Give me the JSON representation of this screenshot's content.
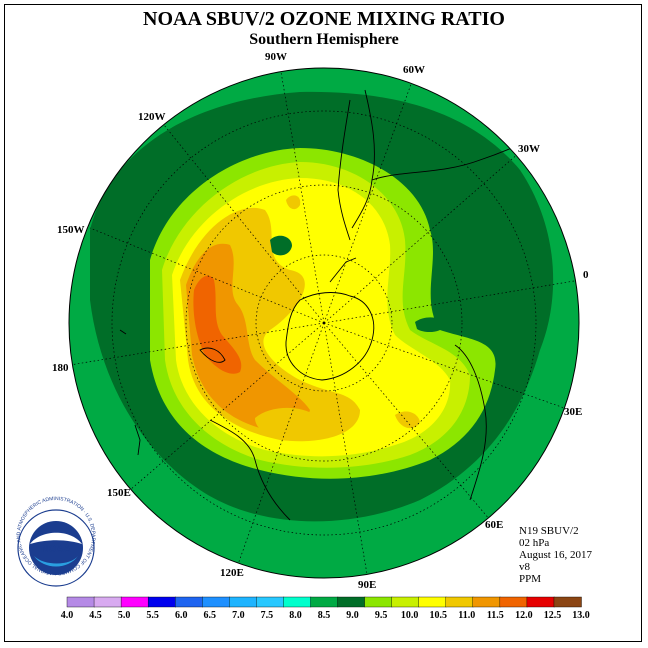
{
  "header": {
    "title": "NOAA SBUV/2 OZONE MIXING RATIO",
    "subtitle": "Southern Hemisphere"
  },
  "map": {
    "projection": "south polar stereographic",
    "longitude_labels": [
      "0",
      "30E",
      "60E",
      "90E",
      "120E",
      "150E",
      "180",
      "150W",
      "120W",
      "90W",
      "60W",
      "30W"
    ]
  },
  "info": {
    "satellite": "N19 SBUV/2",
    "pressure": "02 hPa",
    "date": "August 16, 2017",
    "version": "v8",
    "units": "PPM"
  },
  "colorbar": {
    "ticks": [
      "4.0",
      "4.5",
      "5.0",
      "5.5",
      "6.0",
      "6.5",
      "7.0",
      "7.5",
      "8.0",
      "8.5",
      "9.0",
      "9.5",
      "10.0",
      "10.5",
      "11.0",
      "11.5",
      "12.0",
      "12.5",
      "13.0"
    ],
    "colors": [
      "#b58ae6",
      "#d8aaf0",
      "#ff00ff",
      "#0000ee",
      "#1e64f0",
      "#1e90ff",
      "#1eb4ff",
      "#28c8ff",
      "#00ffcc",
      "#00aa44",
      "#006e28",
      "#8ce600",
      "#c8f000",
      "#ffff00",
      "#f0c800",
      "#f09600",
      "#f06400",
      "#e60000",
      "#8b4513"
    ]
  },
  "logo": {
    "center_text": "NOAA",
    "ring_text": "NATIONAL OCEANIC AND ATMOSPHERIC ADMINISTRATION · U.S. DEPARTMENT OF COMMERCE"
  }
}
